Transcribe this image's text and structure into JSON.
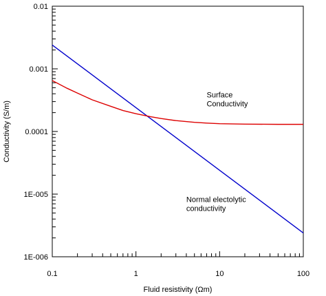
{
  "chart_data": {
    "type": "line",
    "title": "",
    "xlabel": "Fluid resistivity (Ωm)",
    "ylabel": "Conductivity (S/m)",
    "xscale": "log",
    "yscale": "log",
    "xlim": [
      0.1,
      100
    ],
    "ylim": [
      1e-06,
      0.01
    ],
    "xticks": [
      {
        "value": 0.1,
        "label": "0.1"
      },
      {
        "value": 1,
        "label": "1"
      },
      {
        "value": 10,
        "label": "10"
      },
      {
        "value": 100,
        "label": "100"
      }
    ],
    "yticks": [
      {
        "value": 0.01,
        "label": "0.01"
      },
      {
        "value": 0.001,
        "label": "0.001"
      },
      {
        "value": 0.0001,
        "label": "0.0001"
      },
      {
        "value": 1e-05,
        "label": "1E-005"
      },
      {
        "value": 1e-06,
        "label": "1E-006"
      }
    ],
    "grid": false,
    "series": [
      {
        "color": "#0000cc",
        "x": [
          0.1,
          100
        ],
        "y": [
          0.0024,
          2.4e-06
        ]
      },
      {
        "color": "#dd0000",
        "x": [
          0.1,
          0.15,
          0.2,
          0.3,
          0.5,
          0.7,
          1,
          1.5,
          2,
          3,
          5,
          7,
          10,
          20,
          50,
          100
        ],
        "y": [
          0.00065,
          0.00049,
          0.00041,
          0.00032,
          0.000252,
          0.000216,
          0.000192,
          0.000172,
          0.000161,
          0.000149,
          0.00014,
          0.000136,
          0.000133,
          0.000131,
          0.00013,
          0.00013
        ]
      }
    ],
    "annotations": [
      {
        "lines": [
          "Surface",
          "Conductivity"
        ],
        "x": 7,
        "y": 0.00035
      },
      {
        "lines": [
          "Normal electolytic",
          "conductivity"
        ],
        "x": 4,
        "y": 7.5e-06
      }
    ]
  }
}
